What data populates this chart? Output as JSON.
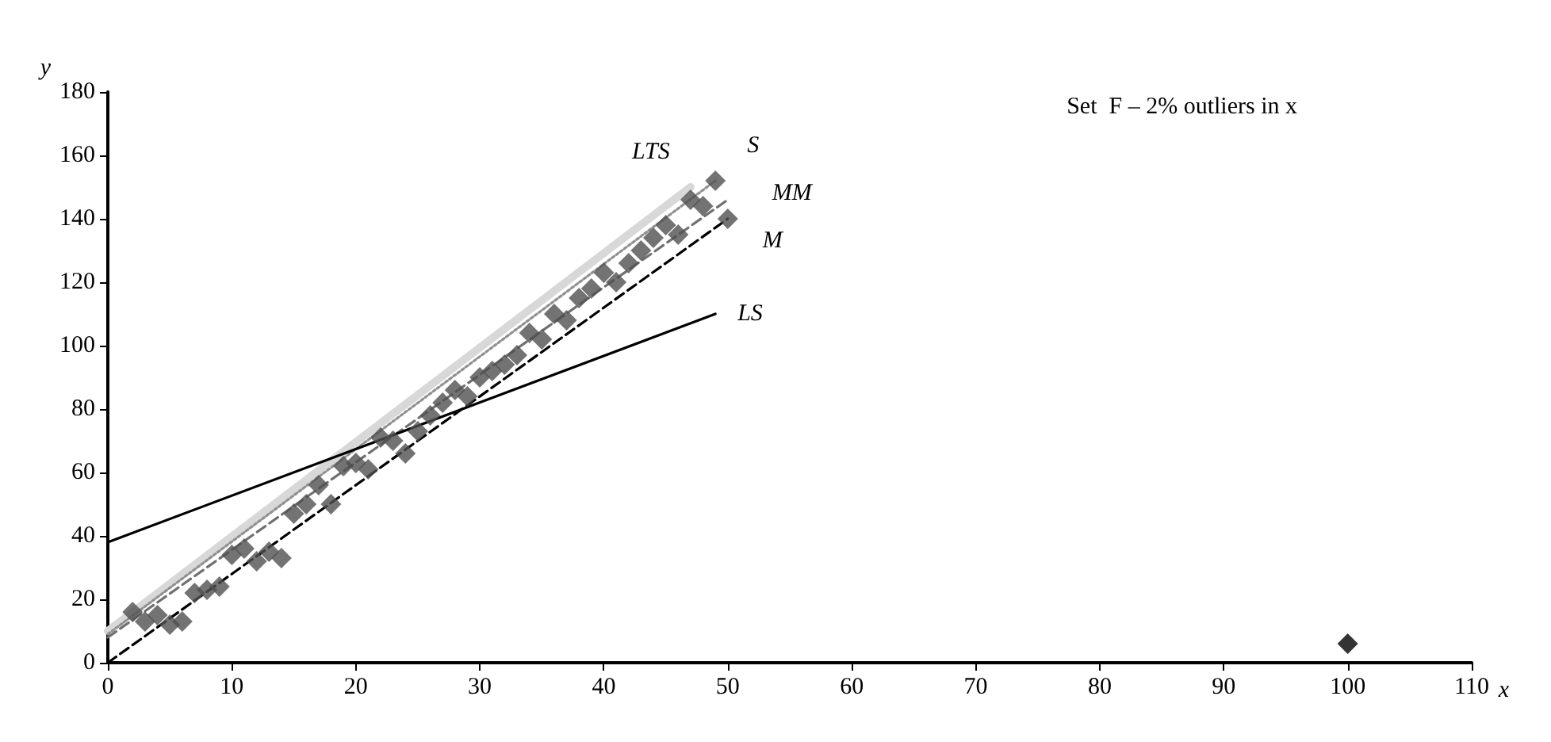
{
  "chart_data": {
    "type": "scatter",
    "xlabel": "x",
    "ylabel": "y",
    "xlim": [
      0,
      110
    ],
    "xticks": [
      0,
      10,
      20,
      30,
      40,
      50,
      60,
      70,
      80,
      90,
      100,
      110
    ],
    "ylim": [
      0,
      180
    ],
    "yticks": [
      0,
      20,
      40,
      60,
      80,
      100,
      120,
      140,
      160,
      180
    ],
    "grid": false,
    "legend": false,
    "annotations": [
      "Set  F – 2% outliers in x"
    ],
    "series": [
      {
        "marker": "diamond",
        "color": "#505050",
        "x": [
          2,
          3,
          4,
          5,
          6,
          7,
          8,
          9,
          10,
          11,
          12,
          13,
          14,
          15,
          16,
          17,
          18,
          19,
          20,
          21,
          22,
          23,
          24,
          25,
          26,
          27,
          28,
          29,
          30,
          31,
          32,
          33,
          34,
          35,
          36,
          37,
          38,
          39,
          40,
          41,
          42,
          43,
          44,
          45,
          46,
          47,
          48,
          49,
          50,
          100
        ],
        "values": [
          16,
          13,
          15,
          12,
          13,
          22,
          23,
          24,
          34,
          36,
          32,
          35,
          33,
          47,
          50,
          56,
          50,
          62,
          63,
          61,
          71,
          70,
          66,
          73,
          78,
          82,
          86,
          84,
          90,
          92,
          94,
          97,
          104,
          102,
          110,
          108,
          115,
          118,
          123,
          120,
          126,
          130,
          134,
          138,
          135,
          146,
          144,
          152,
          140,
          6
        ],
        "colors": [
          "#505050",
          "#505050",
          "#505050",
          "#505050",
          "#505050",
          "#505050",
          "#505050",
          "#505050",
          "#505050",
          "#505050",
          "#505050",
          "#505050",
          "#505050",
          "#505050",
          "#505050",
          "#505050",
          "#505050",
          "#505050",
          "#505050",
          "#505050",
          "#505050",
          "#505050",
          "#505050",
          "#505050",
          "#505050",
          "#505050",
          "#505050",
          "#505050",
          "#505050",
          "#505050",
          "#505050",
          "#505050",
          "#505050",
          "#505050",
          "#505050",
          "#505050",
          "#505050",
          "#505050",
          "#505050",
          "#505050",
          "#505050",
          "#505050",
          "#505050",
          "#505050",
          "#505050",
          "#505050",
          "#505050",
          "#505050",
          "#505050",
          "#000000"
        ]
      },
      {
        "type": "line",
        "name": "LTS",
        "color": "#d8d8d8",
        "line_style": "solid",
        "marker": "none",
        "x": [
          0,
          47
        ],
        "values": [
          10,
          150
        ]
      },
      {
        "type": "line",
        "name": "S",
        "color": "#909090",
        "line_style": "dotted",
        "marker": "none",
        "x": [
          0,
          49
        ],
        "values": [
          9,
          152
        ]
      },
      {
        "type": "line",
        "name": "MM",
        "color": "#707070",
        "line_style": "dashed",
        "marker": "none",
        "x": [
          0,
          50
        ],
        "values": [
          8,
          146
        ]
      },
      {
        "type": "line",
        "name": "M",
        "color": "#000000",
        "line_style": "dashed",
        "marker": "none",
        "x": [
          0,
          50
        ],
        "values": [
          0,
          140
        ]
      },
      {
        "type": "line",
        "name": "LS",
        "color": "#000000",
        "line_style": "solid",
        "marker": "none",
        "x": [
          0,
          49
        ],
        "values": [
          38,
          110
        ]
      }
    ]
  }
}
